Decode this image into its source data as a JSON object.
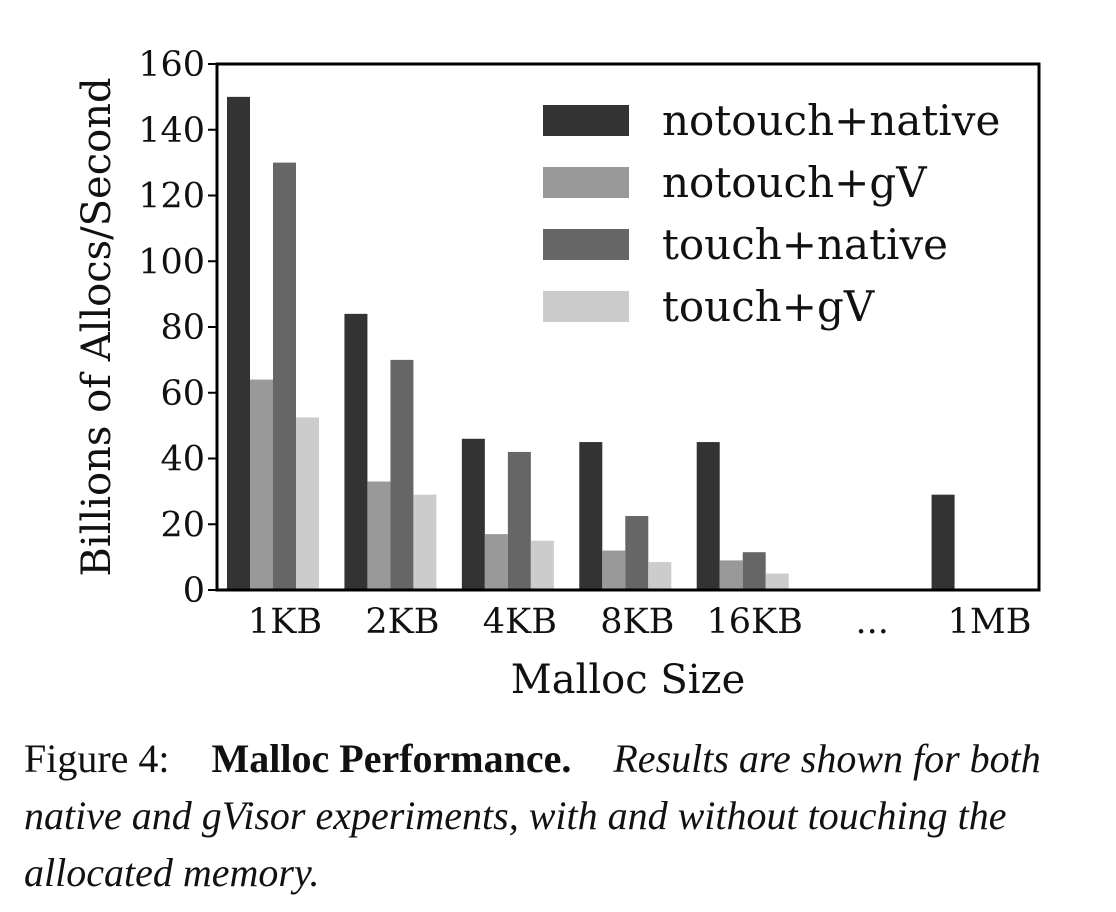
{
  "chart_data": {
    "type": "bar",
    "title": "",
    "xlabel": "Malloc Size",
    "ylabel": "Billions of Allocs/Second",
    "ylim": [
      0,
      160
    ],
    "yticks": [
      "0",
      "20",
      "40",
      "60",
      "80",
      "100",
      "120",
      "140",
      "160"
    ],
    "categories": [
      "1KB",
      "2KB",
      "4KB",
      "8KB",
      "16KB",
      "...",
      "1MB"
    ],
    "legend_position": "top-right",
    "grid": false,
    "series": [
      {
        "name": "notouch+native",
        "color": "#333333",
        "values": [
          150,
          84,
          46,
          45,
          45,
          null,
          29
        ]
      },
      {
        "name": "notouch+gV",
        "color": "#999999",
        "values": [
          64,
          33,
          17,
          12,
          9,
          null,
          0.3
        ]
      },
      {
        "name": "touch+native",
        "color": "#666666",
        "values": [
          130,
          70,
          42,
          22.5,
          11.5,
          null,
          0
        ]
      },
      {
        "name": "touch+gV",
        "color": "#cccccc",
        "values": [
          52.5,
          29,
          15,
          8.5,
          5,
          null,
          0
        ]
      }
    ]
  },
  "caption": {
    "label": "Figure 4:",
    "title": "Malloc Performance.",
    "body": "Results are shown for both native and gVisor experiments, with and without touching the allocated memory."
  }
}
